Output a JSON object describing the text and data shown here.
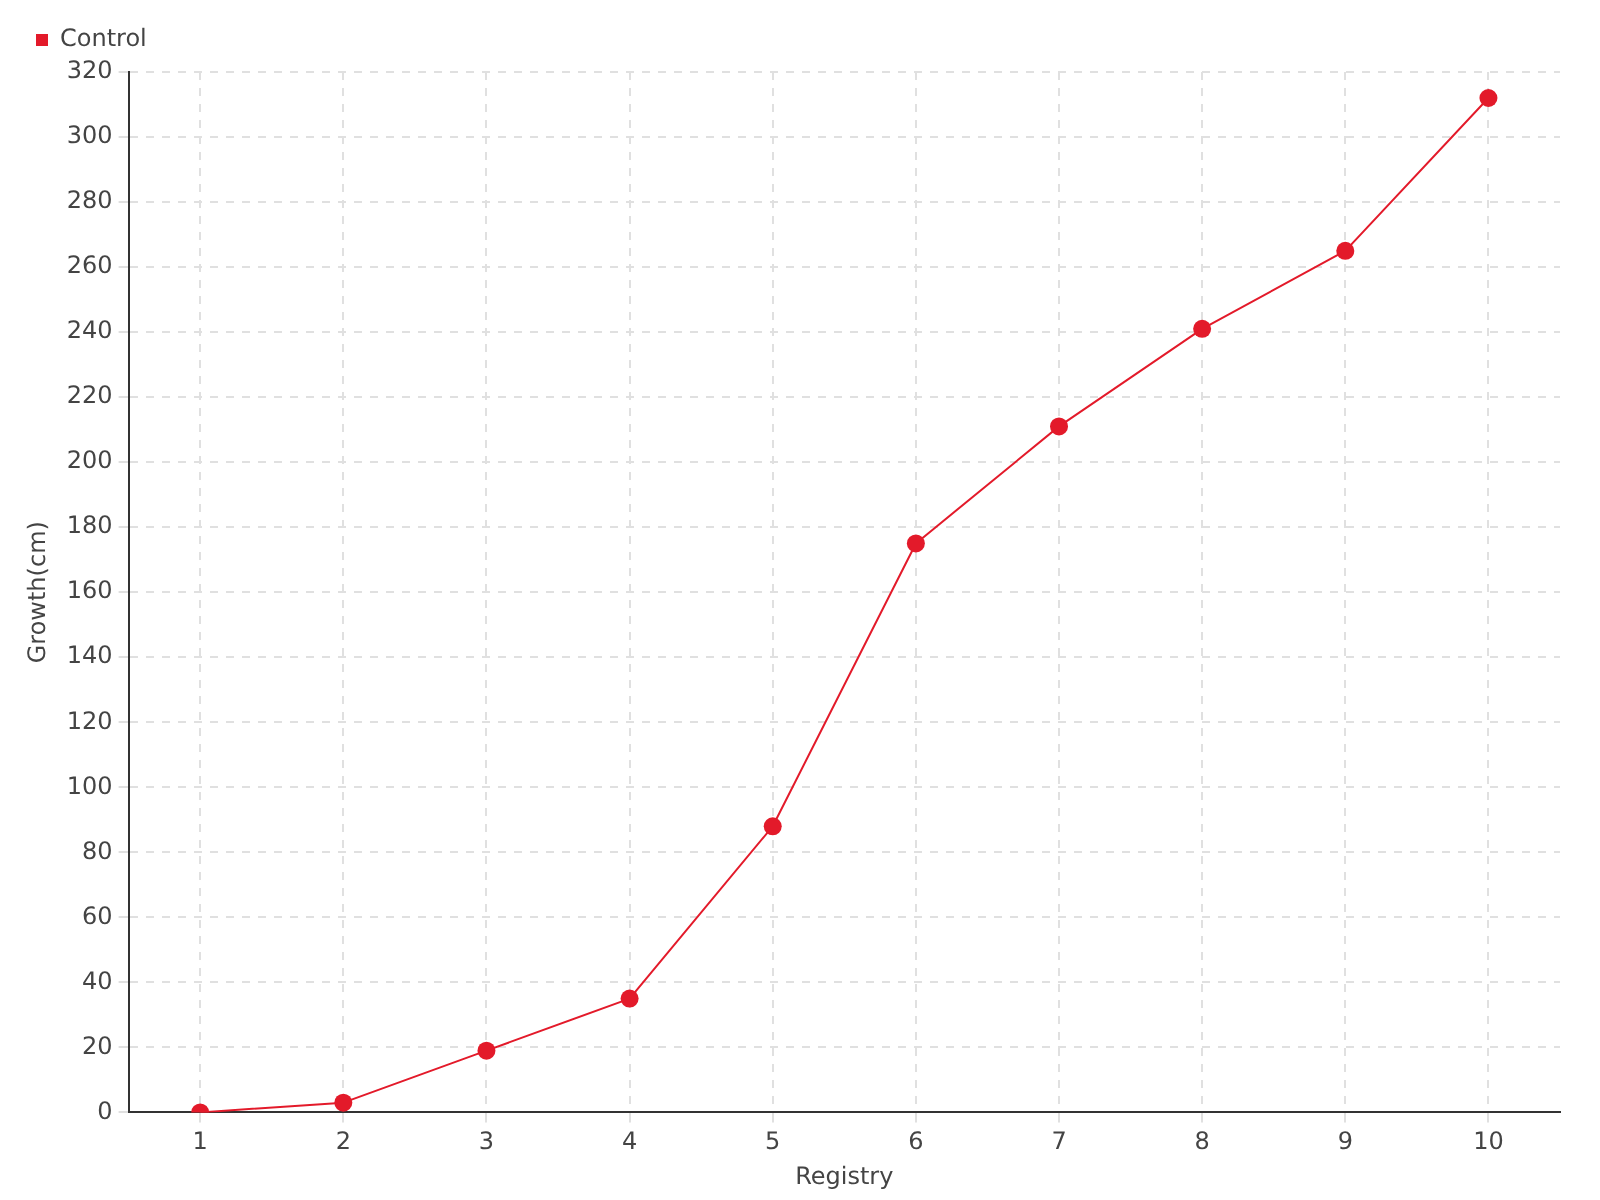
{
  "chart_data": {
    "type": "line",
    "xlabel": "Registry",
    "ylabel": "Growth(cm)",
    "categories": [
      "1",
      "2",
      "3",
      "4",
      "5",
      "6",
      "7",
      "8",
      "9",
      "10"
    ],
    "series": [
      {
        "name": "Control",
        "color": "#e31a2a",
        "values": [
          0,
          3,
          19,
          35,
          88,
          175,
          211,
          241,
          265,
          312
        ]
      }
    ],
    "ylim": [
      0,
      320
    ],
    "yticks": [
      0,
      20,
      40,
      60,
      80,
      100,
      120,
      140,
      160,
      180,
      200,
      220,
      240,
      260,
      280,
      300,
      320
    ],
    "grid": true,
    "legend": "top left",
    "marker": "circle",
    "line_style": "solid"
  }
}
